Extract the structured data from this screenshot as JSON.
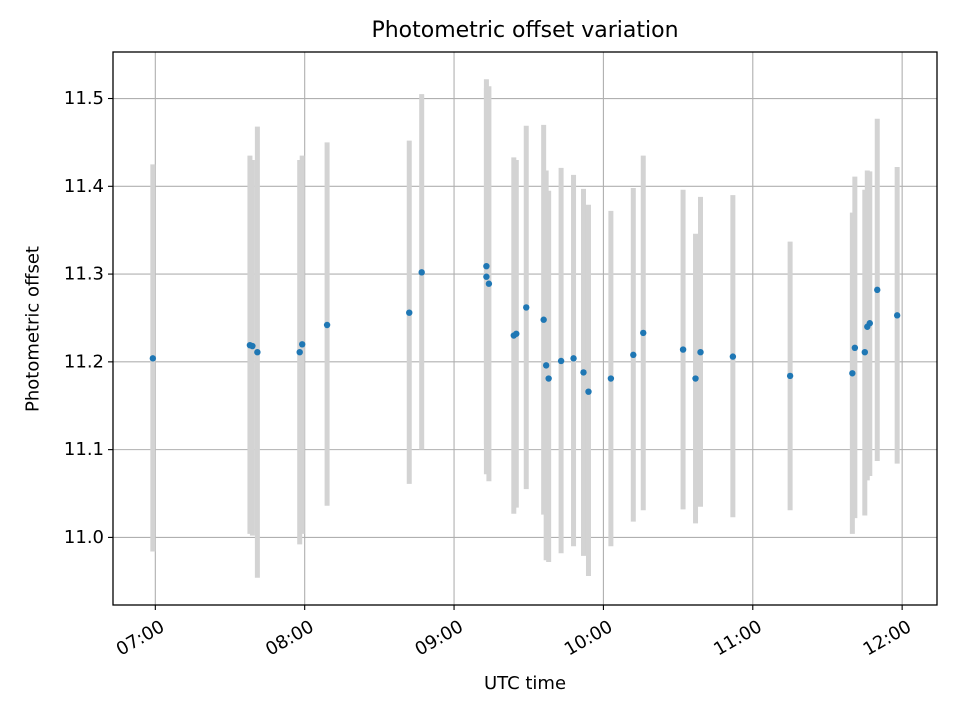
{
  "chart_data": {
    "type": "scatter",
    "title": "Photometric offset variation",
    "xlabel": "UTC time",
    "ylabel": "Photometric offset",
    "x_axis": "time (UTC)",
    "xlim": [
      "06:43",
      "12:14"
    ],
    "ylim": [
      10.923,
      11.553
    ],
    "xticks": [
      "07:00",
      "08:00",
      "09:00",
      "10:00",
      "11:00",
      "12:00"
    ],
    "yticks": [
      "11.0",
      "11.1",
      "11.2",
      "11.3",
      "11.4",
      "11.5"
    ],
    "grid": true,
    "legend": "none",
    "marker_color": "#1f77b4",
    "errorbar_color": "#d3d3d3",
    "points": [
      {
        "t": "06:59",
        "y": 11.204,
        "lo": 10.984,
        "hi": 11.425
      },
      {
        "t": "07:38",
        "y": 11.219,
        "lo": 11.004,
        "hi": 11.435
      },
      {
        "t": "07:39",
        "y": 11.218,
        "lo": 11.002,
        "hi": 11.43
      },
      {
        "t": "07:41",
        "y": 11.211,
        "lo": 10.954,
        "hi": 11.468
      },
      {
        "t": "07:58",
        "y": 11.211,
        "lo": 10.992,
        "hi": 11.43
      },
      {
        "t": "07:59",
        "y": 11.22,
        "lo": 11.004,
        "hi": 11.435
      },
      {
        "t": "08:09",
        "y": 11.242,
        "lo": 11.036,
        "hi": 11.45
      },
      {
        "t": "08:42",
        "y": 11.256,
        "lo": 11.061,
        "hi": 11.452
      },
      {
        "t": "08:47",
        "y": 11.302,
        "lo": 11.1,
        "hi": 11.505
      },
      {
        "t": "09:13",
        "y": 11.309,
        "lo": 11.106,
        "hi": 11.512
      },
      {
        "t": "09:13",
        "y": 11.297,
        "lo": 11.072,
        "hi": 11.522
      },
      {
        "t": "09:14",
        "y": 11.289,
        "lo": 11.064,
        "hi": 11.514
      },
      {
        "t": "09:24",
        "y": 11.23,
        "lo": 11.027,
        "hi": 11.433
      },
      {
        "t": "09:25",
        "y": 11.232,
        "lo": 11.034,
        "hi": 11.43
      },
      {
        "t": "09:29",
        "y": 11.262,
        "lo": 11.055,
        "hi": 11.469
      },
      {
        "t": "09:36",
        "y": 11.248,
        "lo": 11.026,
        "hi": 11.47
      },
      {
        "t": "09:37",
        "y": 11.196,
        "lo": 10.974,
        "hi": 11.418
      },
      {
        "t": "09:38",
        "y": 11.181,
        "lo": 10.972,
        "hi": 11.395
      },
      {
        "t": "09:43",
        "y": 11.201,
        "lo": 10.982,
        "hi": 11.421
      },
      {
        "t": "09:48",
        "y": 11.204,
        "lo": 10.99,
        "hi": 11.413
      },
      {
        "t": "09:52",
        "y": 11.188,
        "lo": 10.979,
        "hi": 11.397
      },
      {
        "t": "09:54",
        "y": 11.166,
        "lo": 10.956,
        "hi": 11.379
      },
      {
        "t": "10:03",
        "y": 11.181,
        "lo": 10.99,
        "hi": 11.372
      },
      {
        "t": "10:12",
        "y": 11.208,
        "lo": 11.018,
        "hi": 11.398
      },
      {
        "t": "10:16",
        "y": 11.233,
        "lo": 11.031,
        "hi": 11.435
      },
      {
        "t": "10:32",
        "y": 11.214,
        "lo": 11.032,
        "hi": 11.396
      },
      {
        "t": "10:37",
        "y": 11.181,
        "lo": 11.016,
        "hi": 11.346
      },
      {
        "t": "10:39",
        "y": 11.211,
        "lo": 11.035,
        "hi": 11.388
      },
      {
        "t": "10:52",
        "y": 11.206,
        "lo": 11.023,
        "hi": 11.39
      },
      {
        "t": "11:15",
        "y": 11.184,
        "lo": 11.031,
        "hi": 11.337
      },
      {
        "t": "11:40",
        "y": 11.187,
        "lo": 11.004,
        "hi": 11.37
      },
      {
        "t": "11:41",
        "y": 11.216,
        "lo": 11.022,
        "hi": 11.411
      },
      {
        "t": "11:45",
        "y": 11.211,
        "lo": 11.025,
        "hi": 11.396
      },
      {
        "t": "11:46",
        "y": 11.24,
        "lo": 11.065,
        "hi": 11.418
      },
      {
        "t": "11:47",
        "y": 11.244,
        "lo": 11.07,
        "hi": 11.417
      },
      {
        "t": "11:50",
        "y": 11.282,
        "lo": 11.087,
        "hi": 11.477
      },
      {
        "t": "11:58",
        "y": 11.253,
        "lo": 11.084,
        "hi": 11.422
      }
    ]
  }
}
